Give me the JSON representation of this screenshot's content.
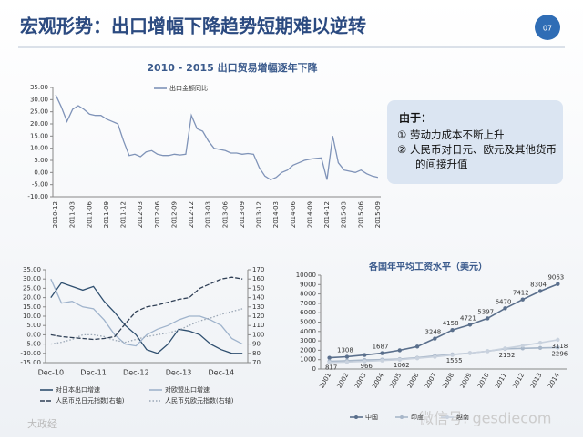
{
  "header": {
    "title": "宏观形势：出口增幅下降趋势短期难以逆转",
    "page": "07"
  },
  "note": {
    "heading": "由于：",
    "items": [
      "①  劳动力成本不断上升",
      "②  人民币对日元、欧元及其他货币的间接升值"
    ]
  },
  "watermark": {
    "left": "大政经",
    "right": "微信号: gesdiecom"
  },
  "chart_data": [
    {
      "type": "line",
      "title": "2010 - 2015 出口贸易增幅逐年下降",
      "categories": [
        "2010-12",
        null,
        null,
        "2011-03",
        null,
        null,
        "2011-06",
        null,
        null,
        "2011-09",
        null,
        null,
        "2011-12",
        null,
        null,
        "2012-03",
        null,
        null,
        "2012-06",
        null,
        null,
        "2012-09",
        null,
        null,
        "2012-12",
        null,
        null,
        "2013-03",
        null,
        null,
        "2013-06",
        null,
        null,
        "2013-09",
        null,
        null,
        "2013-12",
        null,
        null,
        "2014-03",
        null,
        null,
        "2014-06",
        null,
        null,
        "2014-09",
        null,
        null,
        "2014-12",
        null,
        null,
        "2015-03",
        null,
        null,
        "2015-06",
        null,
        null,
        "2015-09"
      ],
      "series": [
        {
          "name": "出口金额同比",
          "color": "#7f93b8",
          "values": [
            32,
            27,
            21,
            26,
            27.5,
            26,
            24,
            23.5,
            23.5,
            22,
            21,
            20,
            13,
            7,
            7.5,
            6.5,
            8.5,
            9,
            7.5,
            7,
            7,
            7.5,
            7.2,
            7.5,
            23.5,
            18,
            17,
            13,
            10,
            9.5,
            9,
            8,
            8,
            7.5,
            7.8,
            7.5,
            2,
            -1.5,
            -3,
            -2,
            0,
            1,
            3,
            4,
            5,
            5.5,
            5.8,
            6,
            -3,
            15,
            4,
            1,
            0.5,
            0,
            1,
            -0.5,
            -1.5,
            -2
          ]
        }
      ],
      "ylim": [
        -10,
        35
      ],
      "yticks": [
        {
          "value": -10,
          "label": "-10.00"
        },
        {
          "value": -5,
          "label": "-5.00"
        },
        {
          "value": 0,
          "label": "0.00"
        },
        {
          "value": 5,
          "label": "5.00"
        },
        {
          "value": 10,
          "label": "10.00"
        },
        {
          "value": 15,
          "label": "15.00"
        },
        {
          "value": 20,
          "label": "20.00"
        },
        {
          "value": 25,
          "label": "25.00"
        },
        {
          "value": 30,
          "label": "30.00"
        },
        {
          "value": 35,
          "label": "35.00"
        }
      ],
      "legend": "top"
    },
    {
      "type": "line",
      "categories": [
        "Dec-10",
        null,
        null,
        null,
        "Dec-11",
        null,
        null,
        null,
        "Dec-12",
        null,
        null,
        null,
        "Dec-13",
        null,
        null,
        null,
        "Dec-14",
        null,
        null
      ],
      "series": [
        {
          "name": "对日本出口增速",
          "color": "#2f4f6f",
          "dash": "solid",
          "values": [
            20,
            28,
            26,
            24,
            26,
            18,
            12,
            5,
            0,
            -8,
            -10,
            -5,
            3,
            2,
            0,
            -5,
            -8,
            -10,
            -10
          ]
        },
        {
          "name": "对欧盟出口增速",
          "color": "#9fb3cc",
          "dash": "solid",
          "values": [
            30,
            17,
            18,
            15,
            14,
            8,
            0,
            -5,
            -6,
            0,
            3,
            5,
            8,
            10,
            10,
            8,
            5,
            -2,
            -5
          ]
        },
        {
          "name": "人民币兑日元指数(右轴)",
          "color": "#2f3f55",
          "dash": "dashed",
          "axis": "y2",
          "values": [
            100,
            98,
            97,
            96,
            95,
            96,
            98,
            112,
            125,
            130,
            132,
            135,
            138,
            140,
            150,
            155,
            160,
            162,
            160
          ]
        },
        {
          "name": "人民币兑欧元指数(右轴)",
          "color": "#9aa6b5",
          "dash": "dotted",
          "axis": "y2",
          "values": [
            90,
            92,
            95,
            100,
            100,
            98,
            94,
            92,
            95,
            98,
            100,
            102,
            105,
            110,
            115,
            118,
            122,
            125,
            128
          ]
        }
      ],
      "ylim": [
        -15,
        35
      ],
      "yticks": [
        {
          "value": -15,
          "label": "-15.00"
        },
        {
          "value": -10,
          "label": "-10.00"
        },
        {
          "value": -5,
          "label": "-5.00"
        },
        {
          "value": 0,
          "label": "0.00"
        },
        {
          "value": 5,
          "label": "5.00"
        },
        {
          "value": 10,
          "label": "10.00"
        },
        {
          "value": 15,
          "label": "15.00"
        },
        {
          "value": 20,
          "label": "20.00"
        },
        {
          "value": 25,
          "label": "25.00"
        },
        {
          "value": 30,
          "label": "30.00"
        },
        {
          "value": 35,
          "label": "35.00"
        }
      ],
      "y2lim": [
        70,
        170
      ],
      "y2ticks": [
        70,
        80,
        90,
        100,
        110,
        120,
        130,
        140,
        150,
        160,
        170
      ],
      "legend": "bottom"
    },
    {
      "type": "line",
      "title": "各国年平均工资水平（美元）",
      "categories": [
        "2001",
        "2002",
        "2003",
        "2004",
        "2005",
        "2006",
        "2007",
        "2008",
        "2009",
        "2010",
        "2011",
        "2012",
        "2013",
        "2014"
      ],
      "series": [
        {
          "name": "中国",
          "color": "#5a6f8c",
          "marker": "circle",
          "values": [
            1200,
            1308,
            1500,
            1687,
            2000,
            2400,
            3248,
            4158,
            4721,
            5397,
            6470,
            7412,
            8304,
            9063
          ],
          "value_labels": [
            null,
            "1308",
            null,
            "1687",
            null,
            null,
            "3248",
            "4158",
            "4721",
            "5397",
            "6470",
            "7412",
            "8304",
            "9063"
          ]
        },
        {
          "name": "印度",
          "color": "#a8b7c9",
          "marker": "circle",
          "values": [
            817,
            880,
            966,
            1000,
            1062,
            1200,
            1400,
            1555,
            1700,
            1900,
            2152,
            2200,
            2250,
            2296
          ],
          "value_labels": [
            "817",
            null,
            "966",
            null,
            "1062",
            null,
            null,
            "1555",
            null,
            null,
            "2152",
            null,
            null,
            "2296"
          ]
        },
        {
          "name": "越南",
          "color": "#c9d2de",
          "marker": "circle",
          "values": [
            700,
            750,
            820,
            900,
            1000,
            1150,
            1300,
            1500,
            1700,
            1900,
            2200,
            2500,
            2800,
            3118
          ],
          "value_labels": [
            null,
            null,
            null,
            null,
            null,
            null,
            null,
            null,
            null,
            null,
            null,
            null,
            null,
            "3118"
          ]
        }
      ],
      "ylim": [
        0,
        10000
      ],
      "yticks": [
        0,
        1000,
        2000,
        3000,
        4000,
        5000,
        6000,
        7000,
        8000,
        9000,
        10000
      ],
      "legend": "bottom"
    }
  ]
}
